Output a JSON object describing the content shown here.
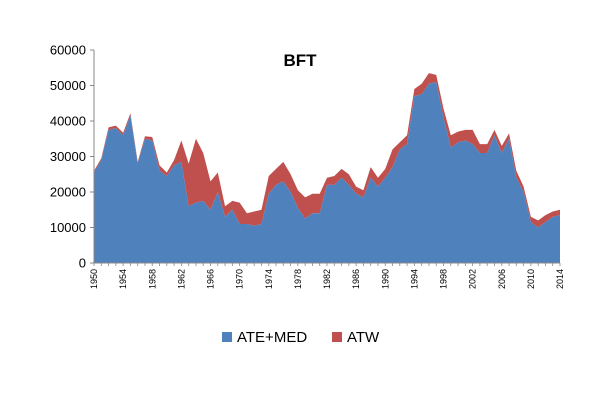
{
  "chart_data": {
    "type": "area",
    "stacked": true,
    "title": "BFT",
    "xlabel": "",
    "ylabel": "",
    "ylim": [
      0,
      60000
    ],
    "yticks": [
      0,
      10000,
      20000,
      30000,
      40000,
      50000,
      60000
    ],
    "xlim": [
      1950,
      2014
    ],
    "xticks": [
      1950,
      1954,
      1958,
      1962,
      1966,
      1970,
      1974,
      1978,
      1982,
      1986,
      1990,
      1994,
      1998,
      2002,
      2006,
      2010,
      2014
    ],
    "grid": false,
    "legend_position": "bottom",
    "x": [
      1950,
      1951,
      1952,
      1953,
      1954,
      1955,
      1956,
      1957,
      1958,
      1959,
      1960,
      1961,
      1962,
      1963,
      1964,
      1965,
      1966,
      1967,
      1968,
      1969,
      1970,
      1971,
      1972,
      1973,
      1974,
      1975,
      1976,
      1977,
      1978,
      1979,
      1980,
      1981,
      1982,
      1983,
      1984,
      1985,
      1986,
      1987,
      1988,
      1989,
      1990,
      1991,
      1992,
      1993,
      1994,
      1995,
      1996,
      1997,
      1998,
      1999,
      2000,
      2001,
      2002,
      2003,
      2004,
      2005,
      2006,
      2007,
      2008,
      2009,
      2010,
      2011,
      2012,
      2013,
      2014
    ],
    "series": [
      {
        "name": "ATE+MED",
        "color": "#4F81BD",
        "values": [
          25500,
          29000,
          37500,
          38000,
          36000,
          41500,
          28000,
          35000,
          34500,
          26000,
          24500,
          27500,
          28500,
          16000,
          17000,
          17500,
          15000,
          20000,
          13000,
          15000,
          11000,
          11000,
          10500,
          11000,
          19500,
          22000,
          23000,
          20000,
          15500,
          12500,
          14000,
          14000,
          22000,
          22000,
          24000,
          22000,
          19500,
          18500,
          24000,
          21500,
          24000,
          27000,
          32000,
          33500,
          47000,
          47500,
          50500,
          51000,
          41000,
          32500,
          34000,
          34500,
          33500,
          31000,
          31000,
          36000,
          31000,
          35000,
          24000,
          20000,
          11500,
          10000,
          11500,
          13000,
          13500
        ]
      },
      {
        "name": "ATW",
        "color": "#C0504D",
        "values": [
          500,
          500,
          700,
          700,
          700,
          700,
          500,
          700,
          1000,
          1500,
          1000,
          1500,
          6000,
          12000,
          18000,
          13500,
          8000,
          5500,
          3000,
          2500,
          6000,
          3000,
          4000,
          4000,
          5000,
          4500,
          5500,
          5000,
          5000,
          6000,
          5500,
          5500,
          2000,
          2500,
          2500,
          3000,
          2000,
          2000,
          3000,
          2500,
          2500,
          5000,
          2000,
          2500,
          2000,
          3000,
          3000,
          2000,
          2500,
          3500,
          3000,
          3000,
          4000,
          2500,
          2500,
          1500,
          2000,
          1500,
          2000,
          1500,
          1500,
          2000,
          2000,
          1500,
          1500
        ]
      }
    ]
  }
}
